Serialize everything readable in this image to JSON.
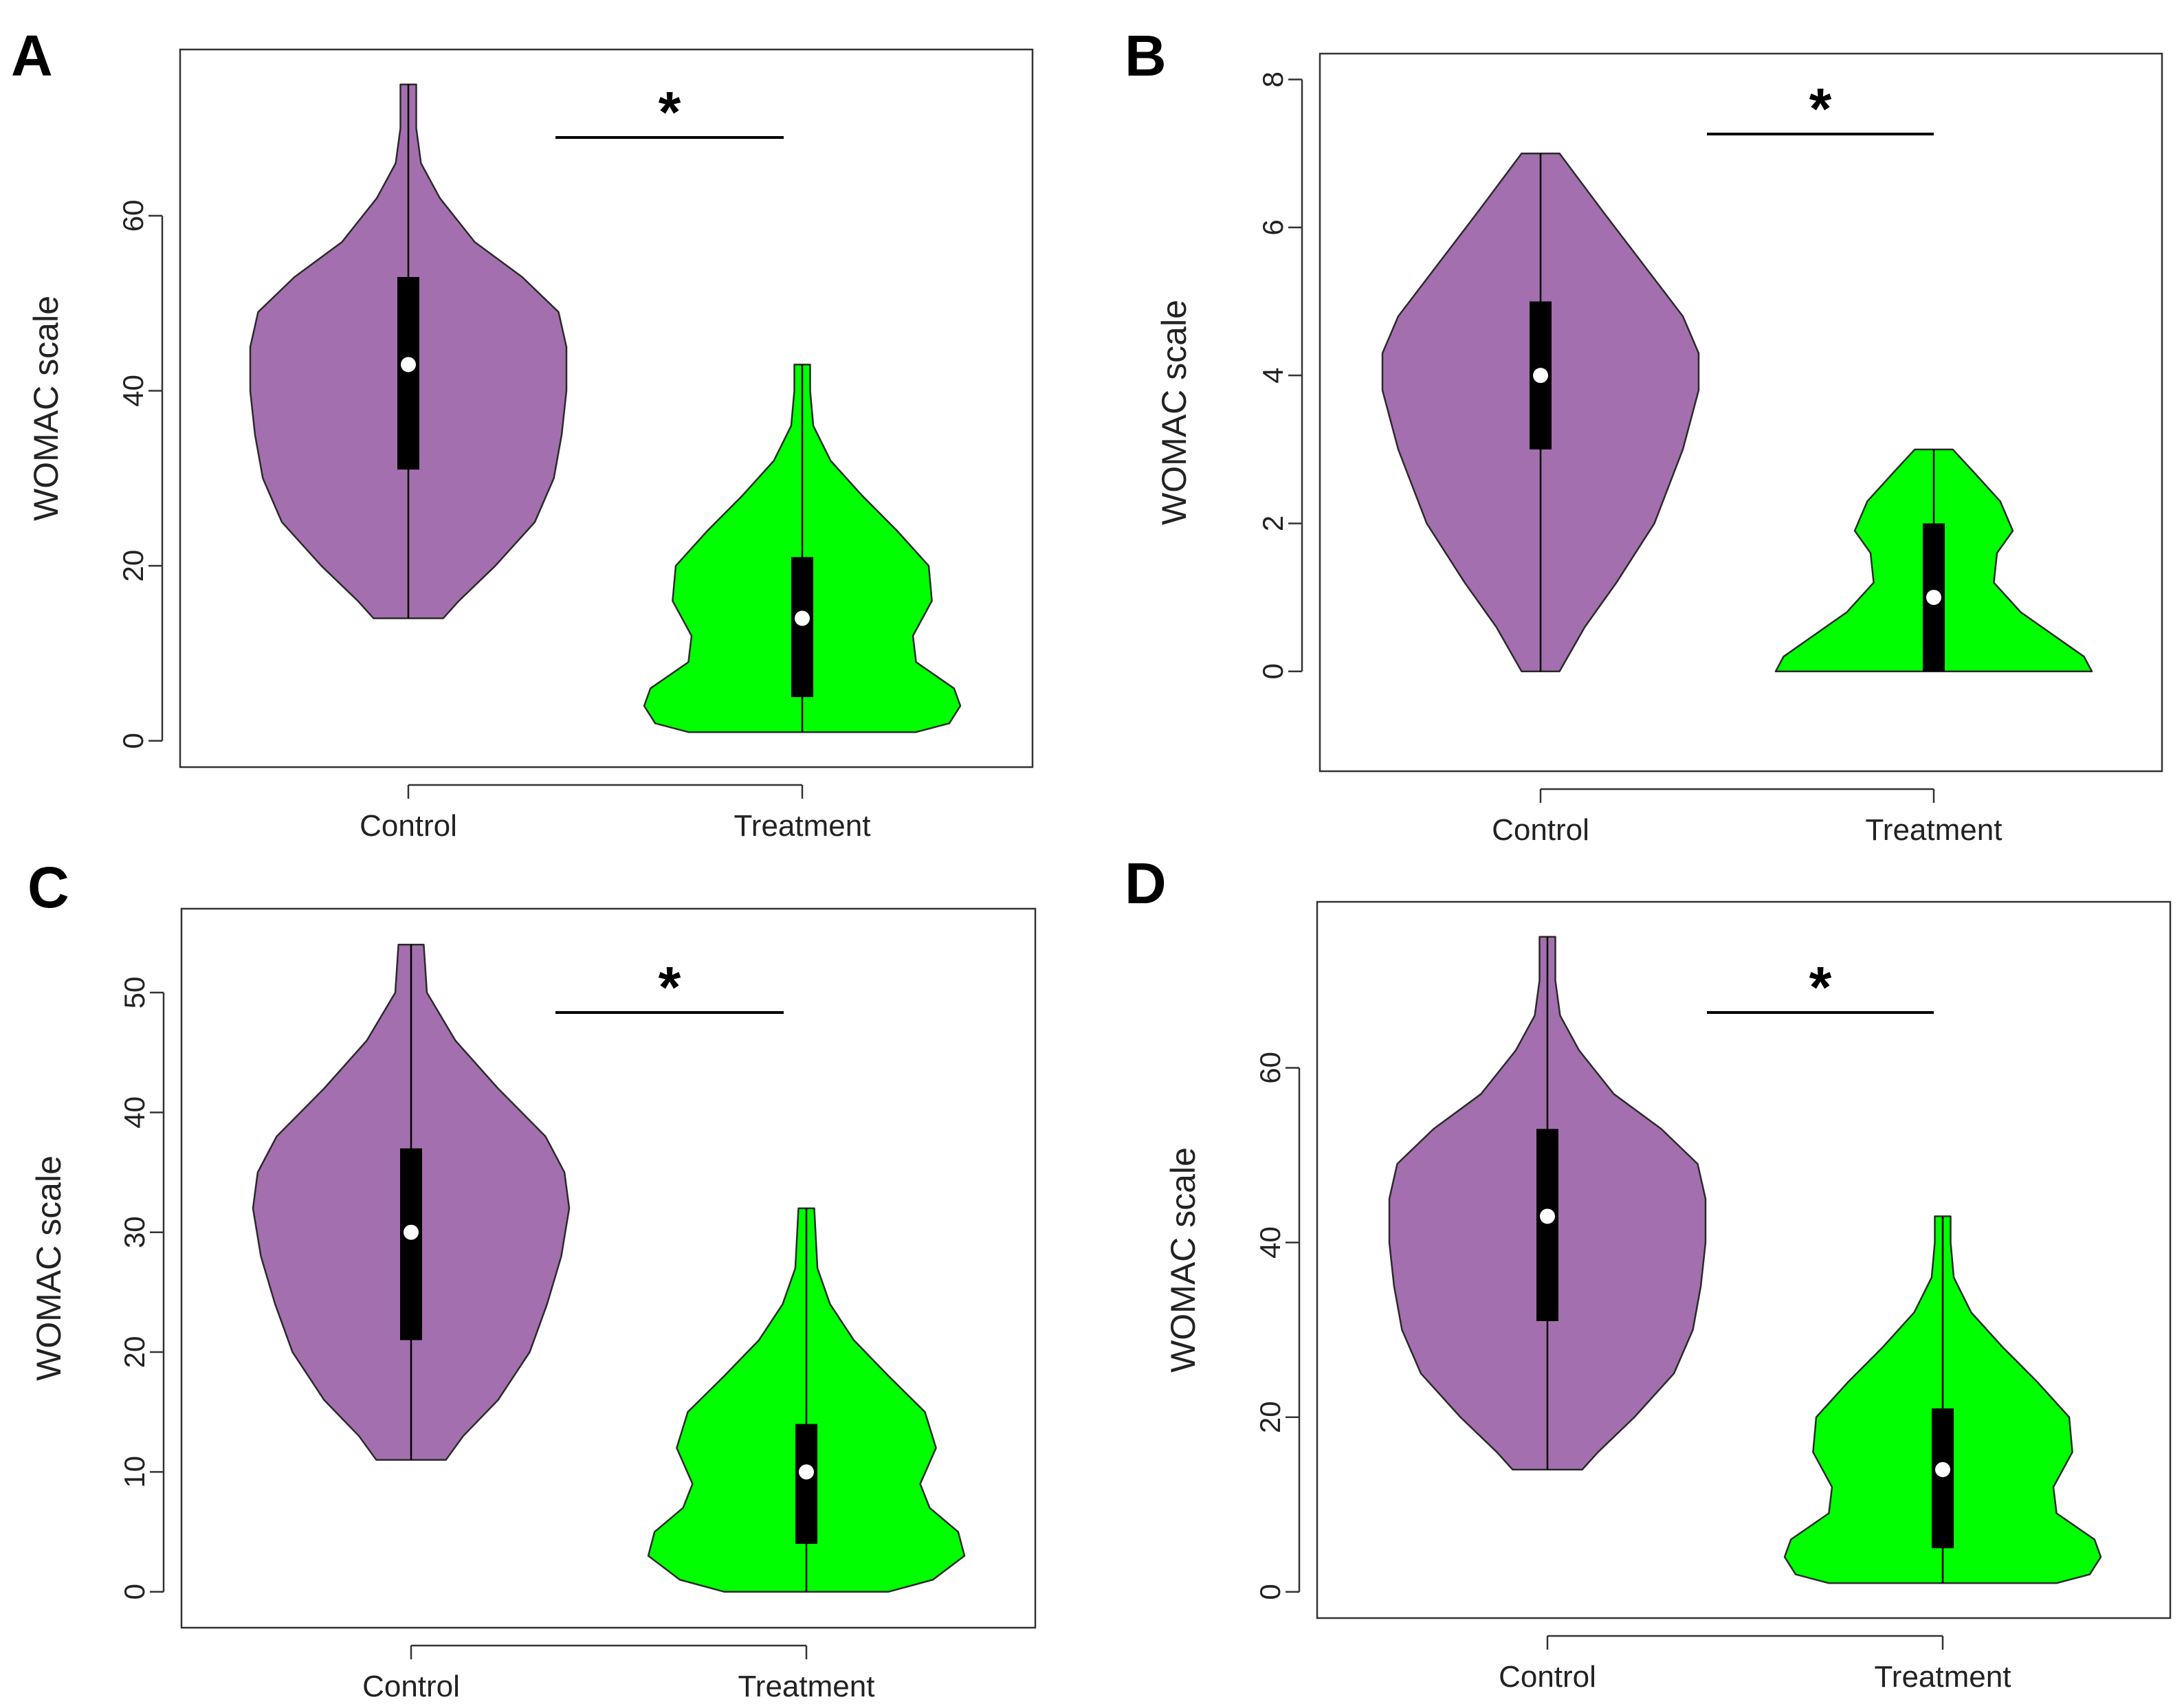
{
  "colors": {
    "control": "#a46fae",
    "treatment": "#00ff00",
    "outline": "#2a2a2a",
    "box": "#000000",
    "median": "#ffffff"
  },
  "chart_data": [
    {
      "panel": "A",
      "type": "violin",
      "ylabel": "WOMAC scale",
      "categories": [
        "Control",
        "Treatment"
      ],
      "yticks": [
        0,
        20,
        40,
        60
      ],
      "ylim": [
        -3,
        79
      ],
      "significance": "*",
      "groups": [
        {
          "name": "Control",
          "min": 14,
          "q1": 31,
          "median": 43,
          "q3": 53,
          "max": 75,
          "shape": [
            [
              14,
              0.22
            ],
            [
              16,
              0.32
            ],
            [
              20,
              0.55
            ],
            [
              25,
              0.8
            ],
            [
              30,
              0.92
            ],
            [
              35,
              0.97
            ],
            [
              40,
              1.0
            ],
            [
              45,
              1.0
            ],
            [
              49,
              0.95
            ],
            [
              53,
              0.72
            ],
            [
              57,
              0.42
            ],
            [
              62,
              0.2
            ],
            [
              66,
              0.08
            ],
            [
              70,
              0.05
            ],
            [
              75,
              0.05
            ]
          ]
        },
        {
          "name": "Treatment",
          "min": 1,
          "q1": 5,
          "median": 14,
          "q3": 21,
          "max": 43,
          "shape": [
            [
              1,
              0.72
            ],
            [
              2,
              0.93
            ],
            [
              4,
              1.0
            ],
            [
              6,
              0.96
            ],
            [
              9,
              0.72
            ],
            [
              12,
              0.7
            ],
            [
              16,
              0.82
            ],
            [
              20,
              0.8
            ],
            [
              24,
              0.6
            ],
            [
              28,
              0.38
            ],
            [
              32,
              0.18
            ],
            [
              36,
              0.07
            ],
            [
              40,
              0.05
            ],
            [
              43,
              0.05
            ]
          ]
        }
      ]
    },
    {
      "panel": "B",
      "type": "violin",
      "ylabel": "WOMAC scale",
      "categories": [
        "Control",
        "Treatment"
      ],
      "yticks": [
        0,
        2,
        4,
        6,
        8
      ],
      "ylim": [
        -1.35,
        8.35
      ],
      "significance": "*",
      "groups": [
        {
          "name": "Control",
          "min": 0,
          "q1": 3,
          "median": 4,
          "q3": 5,
          "max": 7,
          "shape": [
            [
              0,
              0.12
            ],
            [
              0.6,
              0.28
            ],
            [
              1.2,
              0.48
            ],
            [
              2,
              0.72
            ],
            [
              3,
              0.9
            ],
            [
              3.8,
              1.0
            ],
            [
              4.3,
              1.0
            ],
            [
              4.8,
              0.9
            ],
            [
              5.5,
              0.65
            ],
            [
              6.2,
              0.4
            ],
            [
              7,
              0.12
            ]
          ]
        },
        {
          "name": "Treatment",
          "min": 0,
          "q1": 0,
          "median": 1,
          "q3": 2,
          "max": 3,
          "shape": [
            [
              0,
              1.0
            ],
            [
              0.2,
              0.95
            ],
            [
              0.5,
              0.75
            ],
            [
              0.8,
              0.55
            ],
            [
              1.2,
              0.38
            ],
            [
              1.6,
              0.4
            ],
            [
              1.9,
              0.5
            ],
            [
              2.3,
              0.42
            ],
            [
              2.7,
              0.25
            ],
            [
              3,
              0.12
            ]
          ]
        }
      ]
    },
    {
      "panel": "C",
      "type": "violin",
      "ylabel": "WOMAC scale",
      "categories": [
        "Control",
        "Treatment"
      ],
      "yticks": [
        0,
        10,
        20,
        30,
        40,
        50
      ],
      "ylim": [
        -3,
        57
      ],
      "significance": "*",
      "groups": [
        {
          "name": "Control",
          "min": 11,
          "q1": 21,
          "median": 30,
          "q3": 37,
          "max": 54,
          "shape": [
            [
              11,
              0.22
            ],
            [
              13,
              0.33
            ],
            [
              16,
              0.55
            ],
            [
              20,
              0.75
            ],
            [
              24,
              0.86
            ],
            [
              28,
              0.95
            ],
            [
              32,
              1.0
            ],
            [
              35,
              0.97
            ],
            [
              38,
              0.85
            ],
            [
              42,
              0.55
            ],
            [
              46,
              0.28
            ],
            [
              50,
              0.1
            ],
            [
              54,
              0.08
            ]
          ]
        },
        {
          "name": "Treatment",
          "min": 0,
          "q1": 4,
          "median": 10,
          "q3": 14,
          "max": 32,
          "shape": [
            [
              0,
              0.52
            ],
            [
              1,
              0.8
            ],
            [
              3,
              1.0
            ],
            [
              5,
              0.96
            ],
            [
              7,
              0.78
            ],
            [
              9,
              0.72
            ],
            [
              12,
              0.82
            ],
            [
              15,
              0.75
            ],
            [
              18,
              0.52
            ],
            [
              21,
              0.3
            ],
            [
              24,
              0.15
            ],
            [
              27,
              0.07
            ],
            [
              32,
              0.05
            ]
          ]
        }
      ]
    },
    {
      "panel": "D",
      "type": "violin",
      "ylabel": "WOMAC scale",
      "categories": [
        "Control",
        "Treatment"
      ],
      "yticks": [
        0,
        20,
        40,
        60
      ],
      "ylim": [
        -3,
        79
      ],
      "significance": "*",
      "groups": [
        {
          "name": "Control",
          "min": 14,
          "q1": 31,
          "median": 43,
          "q3": 53,
          "max": 75,
          "shape": [
            [
              14,
              0.22
            ],
            [
              16,
              0.32
            ],
            [
              20,
              0.55
            ],
            [
              25,
              0.8
            ],
            [
              30,
              0.92
            ],
            [
              35,
              0.97
            ],
            [
              40,
              1.0
            ],
            [
              45,
              1.0
            ],
            [
              49,
              0.95
            ],
            [
              53,
              0.72
            ],
            [
              57,
              0.42
            ],
            [
              62,
              0.2
            ],
            [
              66,
              0.08
            ],
            [
              70,
              0.05
            ],
            [
              75,
              0.05
            ]
          ]
        },
        {
          "name": "Treatment",
          "min": 1,
          "q1": 5,
          "median": 14,
          "q3": 21,
          "max": 43,
          "shape": [
            [
              1,
              0.72
            ],
            [
              2,
              0.93
            ],
            [
              4,
              1.0
            ],
            [
              6,
              0.96
            ],
            [
              9,
              0.72
            ],
            [
              12,
              0.7
            ],
            [
              16,
              0.82
            ],
            [
              20,
              0.8
            ],
            [
              24,
              0.6
            ],
            [
              28,
              0.38
            ],
            [
              32,
              0.18
            ],
            [
              36,
              0.07
            ],
            [
              40,
              0.05
            ],
            [
              43,
              0.05
            ]
          ]
        }
      ]
    }
  ]
}
